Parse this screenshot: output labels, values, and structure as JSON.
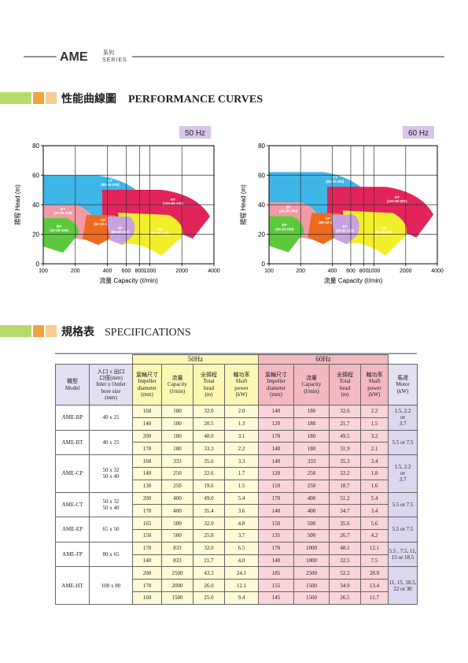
{
  "header": {
    "brand": "AME",
    "series_cn": "系列",
    "series_en": "SERIES"
  },
  "curves_title": {
    "cn": "性能曲線圖",
    "en": "PERFORMANCE CURVES"
  },
  "charts": [
    {
      "tab": "50 Hz",
      "y_label": "揚程 Head (m)",
      "x_label": "流量 Capacity (ℓ/min)",
      "log_x": true,
      "xlim": [
        100,
        4000
      ],
      "xticks": [
        100,
        200,
        400,
        600,
        800,
        1000,
        2000,
        4000
      ],
      "ylim": [
        0,
        80
      ],
      "yticks": [
        0,
        20,
        40,
        60,
        80
      ],
      "grid": true,
      "regions": [
        {
          "name": "CT",
          "code": "(50-32-200)",
          "color": "#3fb6e8"
        },
        {
          "name": "BT",
          "code": "(40-25-200)",
          "color": "#f29aa6"
        },
        {
          "name": "HT",
          "code": "(100-80-200)",
          "color": "#e2245a"
        },
        {
          "name": "FP",
          "code": "(80-65-160)",
          "color": "#f2ef2a"
        },
        {
          "name": "CP",
          "code": "(50-32-160)",
          "color": "#ee6a1e"
        },
        {
          "name": "EP",
          "code": "(65-50-160)",
          "color": "#c8a2e0"
        },
        {
          "name": "BP",
          "code": "(40-25-160)",
          "color": "#5cc93c"
        }
      ]
    },
    {
      "tab": "60 Hz",
      "y_label": "揚程 Head (m)",
      "x_label": "流量 Capacity (ℓ/min)",
      "log_x": true,
      "xlim": [
        100,
        4000
      ],
      "xticks": [
        100,
        200,
        400,
        600,
        800,
        1000,
        2000,
        4000
      ],
      "ylim": [
        0,
        80
      ],
      "yticks": [
        0,
        20,
        40,
        60,
        80
      ],
      "grid": true,
      "regions": [
        {
          "name": "CT",
          "code": "(50-32-200)",
          "color": "#3fb6e8"
        },
        {
          "name": "BT",
          "code": "(40-25-200)",
          "color": "#f29aa6"
        },
        {
          "name": "HT",
          "code": "(100-80-200)",
          "color": "#e2245a"
        },
        {
          "name": "FP",
          "code": "(80-65-160)",
          "color": "#f2ef2a"
        },
        {
          "name": "CP",
          "code": "(50-32-160)",
          "color": "#ee6a1e"
        },
        {
          "name": "EP",
          "code": "(65-50-160)",
          "color": "#c8a2e0"
        },
        {
          "name": "BP",
          "code": "(40-25-160)",
          "color": "#5cc93c"
        }
      ]
    }
  ],
  "spec_title": {
    "cn": "規格表",
    "en": "SPECIFICATIONS"
  },
  "table": {
    "hz": [
      "50Hz",
      "60Hz"
    ],
    "columns": [
      [
        "機型",
        "Model"
      ],
      [
        "入口 x 出口",
        "口徑(mm)",
        "Inlet x Outlet",
        "bore size",
        "(mm)"
      ],
      [
        "葉輪尺寸",
        "Impeller",
        "diameter",
        "(mm)"
      ],
      [
        "流量",
        "Capacity",
        "(l/min)"
      ],
      [
        "全揚程",
        "Total",
        "head",
        "(m)"
      ],
      [
        "軸功率",
        "Shaft",
        "power",
        "(kW)"
      ],
      [
        "葉輪尺寸",
        "Impeller",
        "diameter",
        "(mm)"
      ],
      [
        "流量",
        "Capacity",
        "(l/min)"
      ],
      [
        "全揚程",
        "Total",
        "head",
        "(m)"
      ],
      [
        "軸功率",
        "Shaft",
        "power",
        "(kW)"
      ],
      [
        "馬達",
        "Motor",
        "(kW)"
      ]
    ],
    "groups": [
      {
        "model": "AME-BP",
        "bore": [
          "40 x 25"
        ],
        "motor": [
          "1.5, 2.2",
          "or",
          "3.7"
        ],
        "rows": [
          [
            "168",
            "180",
            "32.0",
            "2.0",
            "140",
            "180",
            "32.6",
            "2.2"
          ],
          [
            "140",
            "180",
            "20.5",
            "1.3",
            "120",
            "180",
            "21.7",
            "1.5"
          ]
        ]
      },
      {
        "model": "AME-BT",
        "bore": [
          "40 x 25"
        ],
        "motor": [
          "5.5 or 7.5"
        ],
        "rows": [
          [
            "200",
            "180",
            "48.0",
            "3.1",
            "170",
            "180",
            "49.5",
            "3.2"
          ],
          [
            "170",
            "180",
            "33.3",
            "2.2",
            "140",
            "180",
            "31.9",
            "2.1"
          ]
        ]
      },
      {
        "model": "AME-CP",
        "bore": [
          "50 x 32",
          "50 x 40"
        ],
        "motor": [
          "1.5, 2.2",
          "or",
          "3.7"
        ],
        "rows": [
          [
            "168",
            "333",
            "35.6",
            "3.3",
            "140",
            "333",
            "35.3",
            "3.4"
          ],
          [
            "140",
            "250",
            "22.6",
            "1.7",
            "120",
            "250",
            "22.2",
            "1.8"
          ],
          [
            "130",
            "250",
            "19.6",
            "1.5",
            "110",
            "250",
            "18.7",
            "1.6"
          ]
        ]
      },
      {
        "model": "AME-CT",
        "bore": [
          "50 x 32",
          "50 x 40"
        ],
        "motor": [
          "5.5 or 7.5"
        ],
        "rows": [
          [
            "200",
            "400",
            "49.0",
            "5.4",
            "170",
            "400",
            "51.2",
            "5.4"
          ],
          [
            "170",
            "400",
            "35.4",
            "3.6",
            "140",
            "400",
            "34.7",
            "3.4"
          ]
        ]
      },
      {
        "model": "AME-EP",
        "bore": [
          "65 x 50"
        ],
        "motor": [
          "5.5 or 7.5"
        ],
        "rows": [
          [
            "165",
            "500",
            "32.0",
            "4.8",
            "150",
            "500",
            "35.6",
            "5.6"
          ],
          [
            "150",
            "500",
            "25.8",
            "3.7",
            "135",
            "500",
            "26.7",
            "4.2"
          ]
        ]
      },
      {
        "model": "AME-FP",
        "bore": [
          "80 x 65"
        ],
        "motor": [
          "5.5 , 7.5, 11,",
          "15 or 18.5"
        ],
        "rows": [
          [
            "170",
            "833",
            "32.0",
            "6.5",
            "170",
            "1000",
            "48.1",
            "12.1"
          ],
          [
            "140",
            "833",
            "21.7",
            "4.0",
            "140",
            "1000",
            "32.5",
            "7.5"
          ]
        ]
      },
      {
        "model": "AME-HT",
        "bore": [
          "100 x 80"
        ],
        "motor": [
          "11, 15, 18.5,",
          "22 or 30"
        ],
        "rows": [
          [
            "200",
            "2500",
            "43.3",
            "24.1",
            "185",
            "2500",
            "52.2",
            "28.0"
          ],
          [
            "170",
            "2000",
            "26.0",
            "12.1",
            "155",
            "1500",
            "34.9",
            "13.4"
          ],
          [
            "160",
            "1500",
            "25.0",
            "9.4",
            "145",
            "1500",
            "26.5",
            "11.7"
          ]
        ]
      }
    ]
  }
}
